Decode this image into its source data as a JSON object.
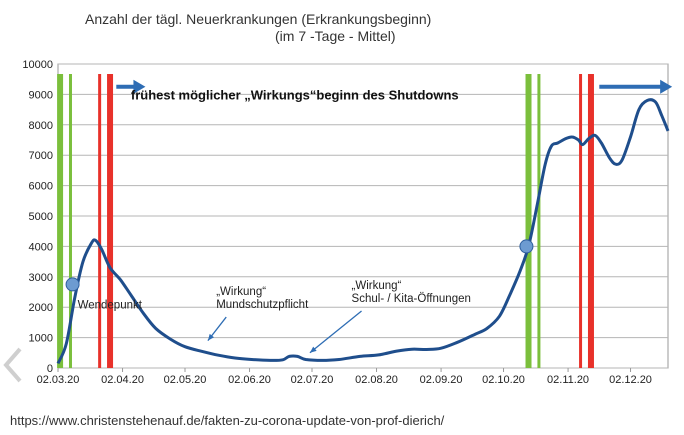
{
  "source_url": "https://www.christenstehenauf.de/fakten-zu-corona-update-von-prof-dierich/",
  "chart_data": {
    "type": "line",
    "title_lines": [
      "Anzahl der tägl. Neuerkrankungen (Erkrankungsbeginn)",
      "(im 7 -Tage - Mittel)"
    ],
    "xlabel": "",
    "ylabel": "",
    "x_ticks": [
      "02.03.20",
      "02.04.20",
      "02.05.20",
      "02.06.20",
      "02.07.20",
      "02.08.20",
      "02.09.20",
      "02.10.20",
      "02.11.20",
      "02.12.20"
    ],
    "x_range": [
      "2020-03-02",
      "2020-12-20"
    ],
    "y_ticks": [
      "0",
      "1000",
      "2000",
      "3000",
      "4000",
      "5000",
      "6000",
      "7000",
      "8000",
      "9000",
      "10000"
    ],
    "ylim": [
      0,
      10000
    ],
    "grid": "horizontal",
    "series_color": "#1f4e8c",
    "points": [
      {
        "x": "2020-03-02",
        "y": 150
      },
      {
        "x": "2020-03-06",
        "y": 800
      },
      {
        "x": "2020-03-10",
        "y": 2300
      },
      {
        "x": "2020-03-14",
        "y": 3500
      },
      {
        "x": "2020-03-18",
        "y": 4100
      },
      {
        "x": "2020-03-20",
        "y": 4200
      },
      {
        "x": "2020-03-23",
        "y": 3900
      },
      {
        "x": "2020-03-27",
        "y": 3300
      },
      {
        "x": "2020-04-01",
        "y": 2900
      },
      {
        "x": "2020-04-06",
        "y": 2400
      },
      {
        "x": "2020-04-12",
        "y": 1800
      },
      {
        "x": "2020-04-18",
        "y": 1300
      },
      {
        "x": "2020-04-25",
        "y": 950
      },
      {
        "x": "2020-05-02",
        "y": 700
      },
      {
        "x": "2020-05-10",
        "y": 550
      },
      {
        "x": "2020-05-18",
        "y": 420
      },
      {
        "x": "2020-05-26",
        "y": 330
      },
      {
        "x": "2020-06-03",
        "y": 280
      },
      {
        "x": "2020-06-12",
        "y": 250
      },
      {
        "x": "2020-06-18",
        "y": 270
      },
      {
        "x": "2020-06-21",
        "y": 380
      },
      {
        "x": "2020-06-25",
        "y": 380
      },
      {
        "x": "2020-06-29",
        "y": 280
      },
      {
        "x": "2020-07-07",
        "y": 250
      },
      {
        "x": "2020-07-15",
        "y": 280
      },
      {
        "x": "2020-07-25",
        "y": 380
      },
      {
        "x": "2020-08-03",
        "y": 430
      },
      {
        "x": "2020-08-12",
        "y": 560
      },
      {
        "x": "2020-08-19",
        "y": 620
      },
      {
        "x": "2020-08-26",
        "y": 610
      },
      {
        "x": "2020-09-02",
        "y": 650
      },
      {
        "x": "2020-09-10",
        "y": 850
      },
      {
        "x": "2020-09-18",
        "y": 1100
      },
      {
        "x": "2020-09-24",
        "y": 1300
      },
      {
        "x": "2020-09-30",
        "y": 1700
      },
      {
        "x": "2020-10-05",
        "y": 2400
      },
      {
        "x": "2020-10-10",
        "y": 3200
      },
      {
        "x": "2020-10-14",
        "y": 4000
      },
      {
        "x": "2020-10-18",
        "y": 5300
      },
      {
        "x": "2020-10-22",
        "y": 6700
      },
      {
        "x": "2020-10-25",
        "y": 7300
      },
      {
        "x": "2020-10-28",
        "y": 7400
      },
      {
        "x": "2020-11-01",
        "y": 7550
      },
      {
        "x": "2020-11-04",
        "y": 7600
      },
      {
        "x": "2020-11-07",
        "y": 7500
      },
      {
        "x": "2020-11-09",
        "y": 7350
      },
      {
        "x": "2020-11-12",
        "y": 7550
      },
      {
        "x": "2020-11-15",
        "y": 7650
      },
      {
        "x": "2020-11-18",
        "y": 7400
      },
      {
        "x": "2020-11-22",
        "y": 6900
      },
      {
        "x": "2020-11-25",
        "y": 6700
      },
      {
        "x": "2020-11-28",
        "y": 6850
      },
      {
        "x": "2020-12-02",
        "y": 7600
      },
      {
        "x": "2020-12-06",
        "y": 8500
      },
      {
        "x": "2020-12-10",
        "y": 8800
      },
      {
        "x": "2020-12-14",
        "y": 8750
      },
      {
        "x": "2020-12-17",
        "y": 8300
      },
      {
        "x": "2020-12-20",
        "y": 7800
      }
    ],
    "markers": [
      {
        "x": "2020-03-09",
        "y": 2750,
        "color": "#6d9bd1",
        "label": "Wendepunkt"
      },
      {
        "x": "2020-10-13",
        "y": 4000,
        "color": "#6d9bd1",
        "label": ""
      }
    ],
    "vertical_lines": [
      {
        "x": "2020-03-03",
        "color": "#7bbf3c",
        "width": "thick"
      },
      {
        "x": "2020-03-08",
        "color": "#7bbf3c",
        "width": "thin"
      },
      {
        "x": "2020-03-22",
        "color": "#e8312a",
        "width": "thin"
      },
      {
        "x": "2020-03-27",
        "color": "#e8312a",
        "width": "thick"
      },
      {
        "x": "2020-10-14",
        "color": "#7bbf3c",
        "width": "thick"
      },
      {
        "x": "2020-10-19",
        "color": "#7bbf3c",
        "width": "thin"
      },
      {
        "x": "2020-11-08",
        "color": "#e8312a",
        "width": "thin"
      },
      {
        "x": "2020-11-13",
        "color": "#e8312a",
        "width": "thick"
      }
    ],
    "arrows": [
      {
        "from": "2020-03-30",
        "to": "2020-04-13",
        "y": 9250,
        "color": "#2e6db4"
      },
      {
        "from": "2020-11-17",
        "to": "2020-12-22",
        "y": 9250,
        "color": "#2e6db4"
      }
    ],
    "headline": "frühest möglicher „Wirkungs“beginn  des Shutdowns",
    "annotations": [
      {
        "lines": [
          "„Wirkung“",
          "Mundschutzpflicht"
        ],
        "x": "2020-05-17",
        "y": 2400,
        "arrow_to": {
          "x": "2020-05-13",
          "y": 900
        }
      },
      {
        "lines": [
          "„Wirkung“",
          "Schul- / Kita-Öffnungen"
        ],
        "x": "2020-07-21",
        "y": 2600,
        "arrow_to": {
          "x": "2020-07-01",
          "y": 500
        }
      }
    ]
  }
}
